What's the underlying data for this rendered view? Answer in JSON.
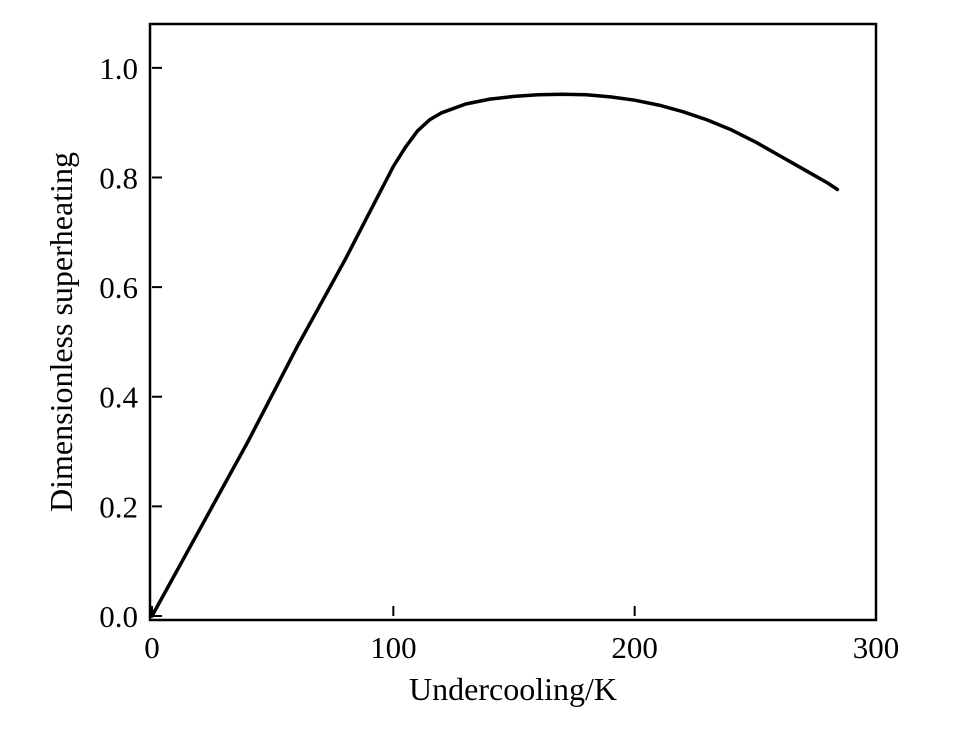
{
  "chart_data": {
    "type": "line",
    "title": "",
    "xlabel": "Undercooling/K",
    "ylabel": "Dimensionless superheating",
    "xlim": [
      0,
      300
    ],
    "ylim": [
      0,
      1.08
    ],
    "xticks": [
      0,
      100,
      200,
      300
    ],
    "xtick_labels": [
      "0",
      "100",
      "200",
      "300"
    ],
    "yticks": [
      0.0,
      0.2,
      0.4,
      0.6,
      0.8,
      1.0
    ],
    "ytick_labels": [
      "0.0",
      "0.2",
      "0.4",
      "0.6",
      "0.8",
      "1.0"
    ],
    "grid": false,
    "legend": "none",
    "series": [
      {
        "color": "#000000",
        "x": [
          0,
          20,
          40,
          60,
          80,
          100,
          105,
          110,
          115,
          120,
          130,
          140,
          150,
          160,
          170,
          180,
          190,
          200,
          210,
          220,
          230,
          240,
          250,
          260,
          270,
          280,
          284
        ],
        "y": [
          0.0,
          0.16,
          0.32,
          0.49,
          0.65,
          0.82,
          0.855,
          0.885,
          0.905,
          0.918,
          0.934,
          0.943,
          0.948,
          0.951,
          0.952,
          0.951,
          0.947,
          0.941,
          0.932,
          0.92,
          0.905,
          0.887,
          0.865,
          0.84,
          0.815,
          0.79,
          0.778
        ]
      }
    ]
  }
}
